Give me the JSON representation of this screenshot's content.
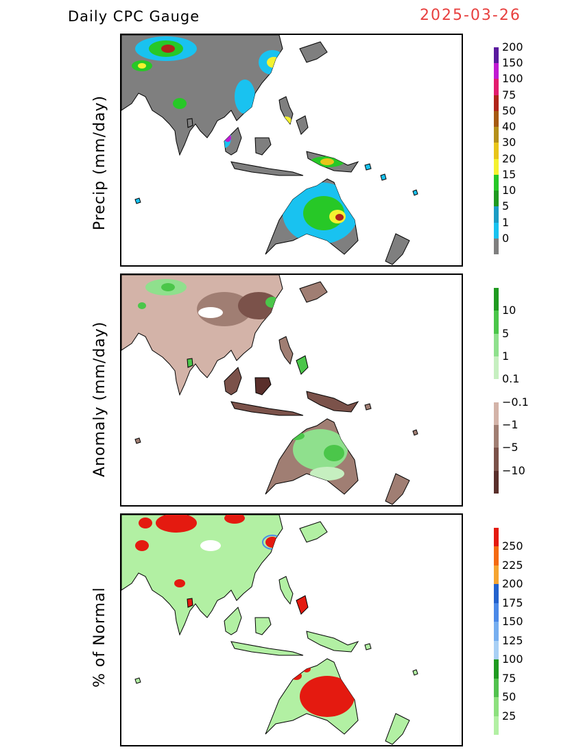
{
  "header": {
    "title": "Daily CPC Gauge",
    "date": "2025-03-26"
  },
  "panels": [
    {
      "id": "precip",
      "ylabel": "Precip (mm/day)",
      "legend_colors": [
        "#7f7f7f",
        "#19c2f0",
        "#1b9cc4",
        "#1f9a20",
        "#27c827",
        "#f4f230",
        "#e8c51a",
        "#b5901a",
        "#a55a12",
        "#b0241a",
        "#e21c6e",
        "#c01ad2",
        "#5a1a9e"
      ],
      "legend_labels": [
        "0",
        "1",
        "5",
        "10",
        "15",
        "20",
        "30",
        "40",
        "50",
        "75",
        "100",
        "150",
        "200"
      ]
    },
    {
      "id": "anomaly",
      "ylabel": "Anomaly (mm/day)",
      "legend_colors": [
        "#5a2f2b",
        "#7b524a",
        "#a07e73",
        "#d3b3a8",
        "#ffffff",
        "#c6efc0",
        "#8fe08d",
        "#4bc64a",
        "#1f9a20"
      ],
      "legend_labels": [
        "−10",
        "−5",
        "−1",
        "−0.1",
        "0.1",
        "1",
        "5",
        "10"
      ]
    },
    {
      "id": "percent",
      "ylabel": "% of Normal",
      "legend_colors": [
        "#b2f0a3",
        "#8de07e",
        "#52c24e",
        "#1f9a20",
        "#a8d0f5",
        "#76aef0",
        "#4b89e8",
        "#2362cd",
        "#f5a431",
        "#f46a12",
        "#e41a10"
      ],
      "legend_labels": [
        "25",
        "50",
        "75",
        "100",
        "125",
        "150",
        "175",
        "200",
        "225",
        "250"
      ]
    }
  ]
}
